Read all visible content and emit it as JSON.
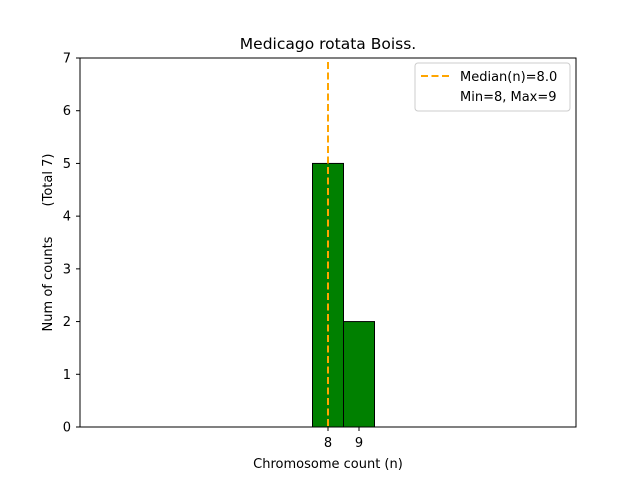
{
  "chart_data": {
    "type": "bar",
    "title": "Medicago rotata Boiss.",
    "xlabel": "Chromosome count (n)",
    "ylabel": "Num of counts",
    "ylabel_extra": "(Total 7)",
    "bars": [
      {
        "x": 8,
        "value": 5
      },
      {
        "x": 9,
        "value": 2
      }
    ],
    "bar_width": 1,
    "bar_color": "#008000",
    "bar_edge_color": "#000000",
    "xlim": [
      0,
      16
    ],
    "ylim": [
      0,
      7
    ],
    "baseline_extent": [
      0,
      12.5
    ],
    "x_ticks": [
      8,
      9
    ],
    "y_ticks": [
      0,
      1,
      2,
      3,
      4,
      5,
      6,
      7
    ],
    "median": 8.0,
    "median_color": "#FFA500",
    "legend": {
      "position": "top-right",
      "entries": [
        "Median(n)=8.0",
        "Min=8, Max=9"
      ]
    },
    "grid": false
  }
}
